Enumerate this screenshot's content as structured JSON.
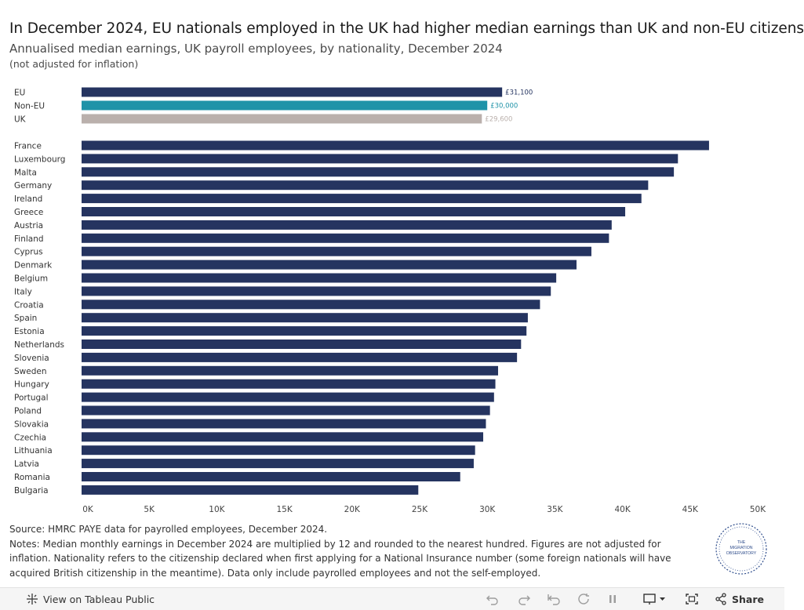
{
  "header": {
    "title": "In December 2024, EU nationals employed in the UK had higher median earnings than UK and non-EU citizens",
    "subtitle": "Annualised median earnings, UK payroll employees, by nationality, December 2024",
    "subnote": "(not adjusted for inflation)"
  },
  "chart_data": {
    "type": "bar",
    "orientation": "horizontal",
    "title": "",
    "xlabel": "",
    "ylabel": "",
    "xlim": [
      0,
      50000
    ],
    "x_ticks": [
      "0K",
      "5K",
      "10K",
      "15K",
      "20K",
      "25K",
      "30K",
      "35K",
      "40K",
      "45K",
      "50K"
    ],
    "grid": false,
    "summary_series": {
      "categories": [
        "EU",
        "Non-EU",
        "UK"
      ],
      "values": [
        31100,
        30000,
        29600
      ],
      "data_labels": [
        "£31,100",
        "£30,000",
        "£29,600"
      ],
      "colors": [
        "#253460",
        "#1f93a8",
        "#bab0ac"
      ]
    },
    "country_series": {
      "categories": [
        "France",
        "Luxembourg",
        "Malta",
        "Germany",
        "Ireland",
        "Greece",
        "Austria",
        "Finland",
        "Cyprus",
        "Denmark",
        "Belgium",
        "Italy",
        "Croatia",
        "Spain",
        "Estonia",
        "Netherlands",
        "Slovenia",
        "Sweden",
        "Hungary",
        "Portugal",
        "Poland",
        "Slovakia",
        "Czechia",
        "Lithuania",
        "Latvia",
        "Romania",
        "Bulgaria"
      ],
      "values": [
        46400,
        44100,
        43800,
        41900,
        41400,
        40200,
        39200,
        39000,
        37700,
        36600,
        35100,
        34700,
        33900,
        33000,
        32900,
        32500,
        32200,
        30800,
        30600,
        30500,
        30200,
        29900,
        29700,
        29100,
        29000,
        28000,
        24900
      ],
      "color": "#253460"
    }
  },
  "footer": {
    "source": "Source: HMRC PAYE data for payrolled employees, December 2024.",
    "notes": "Notes: Median monthly earnings in December 2024 are multiplied by 12 and rounded to the nearest hundred. Figures are not adjusted for inflation. Nationality refers to the citizenship declared when first applying for a National Insurance number (some foreign nationals will have acquired British citizenship in the meantime). Data only include payrolled employees and not the self-employed."
  },
  "logo": {
    "text_line1": "THE",
    "text_line2": "MIGRATION",
    "text_line3": "OBSERVATORY",
    "color": "#2f4d8c"
  },
  "toolbar": {
    "view_label": "View on Tableau Public",
    "share_label": "Share",
    "icons": [
      "tableau-icon",
      "undo-icon",
      "redo-icon",
      "revert-icon",
      "refresh-icon",
      "pause-icon",
      "download-icon",
      "fullscreen-icon",
      "share-icon"
    ]
  }
}
